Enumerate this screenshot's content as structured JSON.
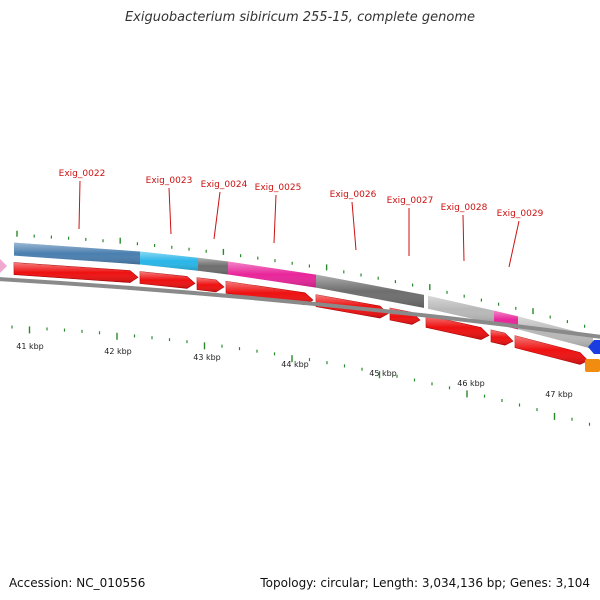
{
  "title": "Exiguobacterium sibiricum 255-15, complete genome",
  "accession_text": "Accession: NC_010556",
  "summary_text": "Topology: circular; Length: 3,034,136 bp; Genes: 3,104",
  "colors": {
    "cds_arrow": "#ee1111",
    "backbone": "#8a8a8a",
    "tick": "#2a8a2a",
    "label_red": "#cc1111",
    "blue": "#4a7fb0",
    "cyan": "#29b6e8",
    "dark_gray": "#6e6e6e",
    "pink": "#e8259a",
    "light_gray": "#b8b8b8",
    "far_blue": "#1a3de0",
    "far_orange": "#f08c10"
  },
  "kbp_labels": [
    "41 kbp",
    "42 kbp",
    "43 kbp",
    "44 kbp",
    "45 kbp",
    "46 kbp",
    "47 kbp"
  ],
  "genes": [
    {
      "name": "Exig_0022"
    },
    {
      "name": "Exig_0023"
    },
    {
      "name": "Exig_0024"
    },
    {
      "name": "Exig_0025"
    },
    {
      "name": "Exig_0026"
    },
    {
      "name": "Exig_0027"
    },
    {
      "name": "Exig_0028"
    },
    {
      "name": "Exig_0029"
    }
  ]
}
